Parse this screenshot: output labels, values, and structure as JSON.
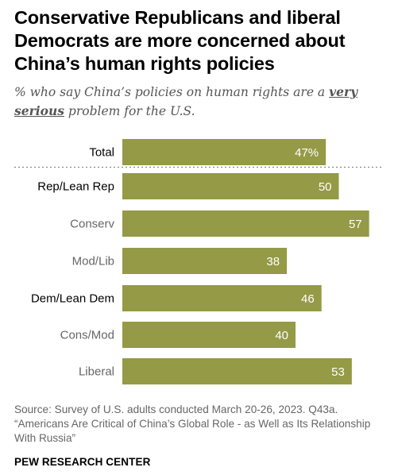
{
  "header": {
    "title": "Conservative Republicans and liberal Democrats are more concerned about China’s human rights policies",
    "subtitle_pre": "% who say China’s policies on human rights are a ",
    "subtitle_emph": "very serious",
    "subtitle_post": " problem for the U.S."
  },
  "chart_data": {
    "type": "bar",
    "orientation": "horizontal",
    "categories": [
      "Total",
      "Rep/Lean Rep",
      "Conserv",
      "Mod/Lib",
      "Dem/Lean Dem",
      "Cons/Mod",
      "Liberal"
    ],
    "values": [
      47,
      50,
      57,
      38,
      46,
      40,
      53
    ],
    "value_labels": [
      "47%",
      "50",
      "57",
      "38",
      "46",
      "40",
      "53"
    ],
    "category_style": [
      "primary",
      "primary",
      "sub",
      "sub",
      "primary",
      "sub",
      "sub"
    ],
    "divider_after": "Total",
    "bar_color": "#949a45",
    "primary_label_color": "#000000",
    "sub_label_color": "#666666",
    "value_label_color": "#ffffff"
  },
  "footer": {
    "source": "Source: Survey of U.S. adults conducted March 20-26, 2023. Q43a. “Americans Are Critical of China’s Global Role - as Well as Its Relationship With Russia”",
    "brand": "PEW RESEARCH CENTER"
  }
}
